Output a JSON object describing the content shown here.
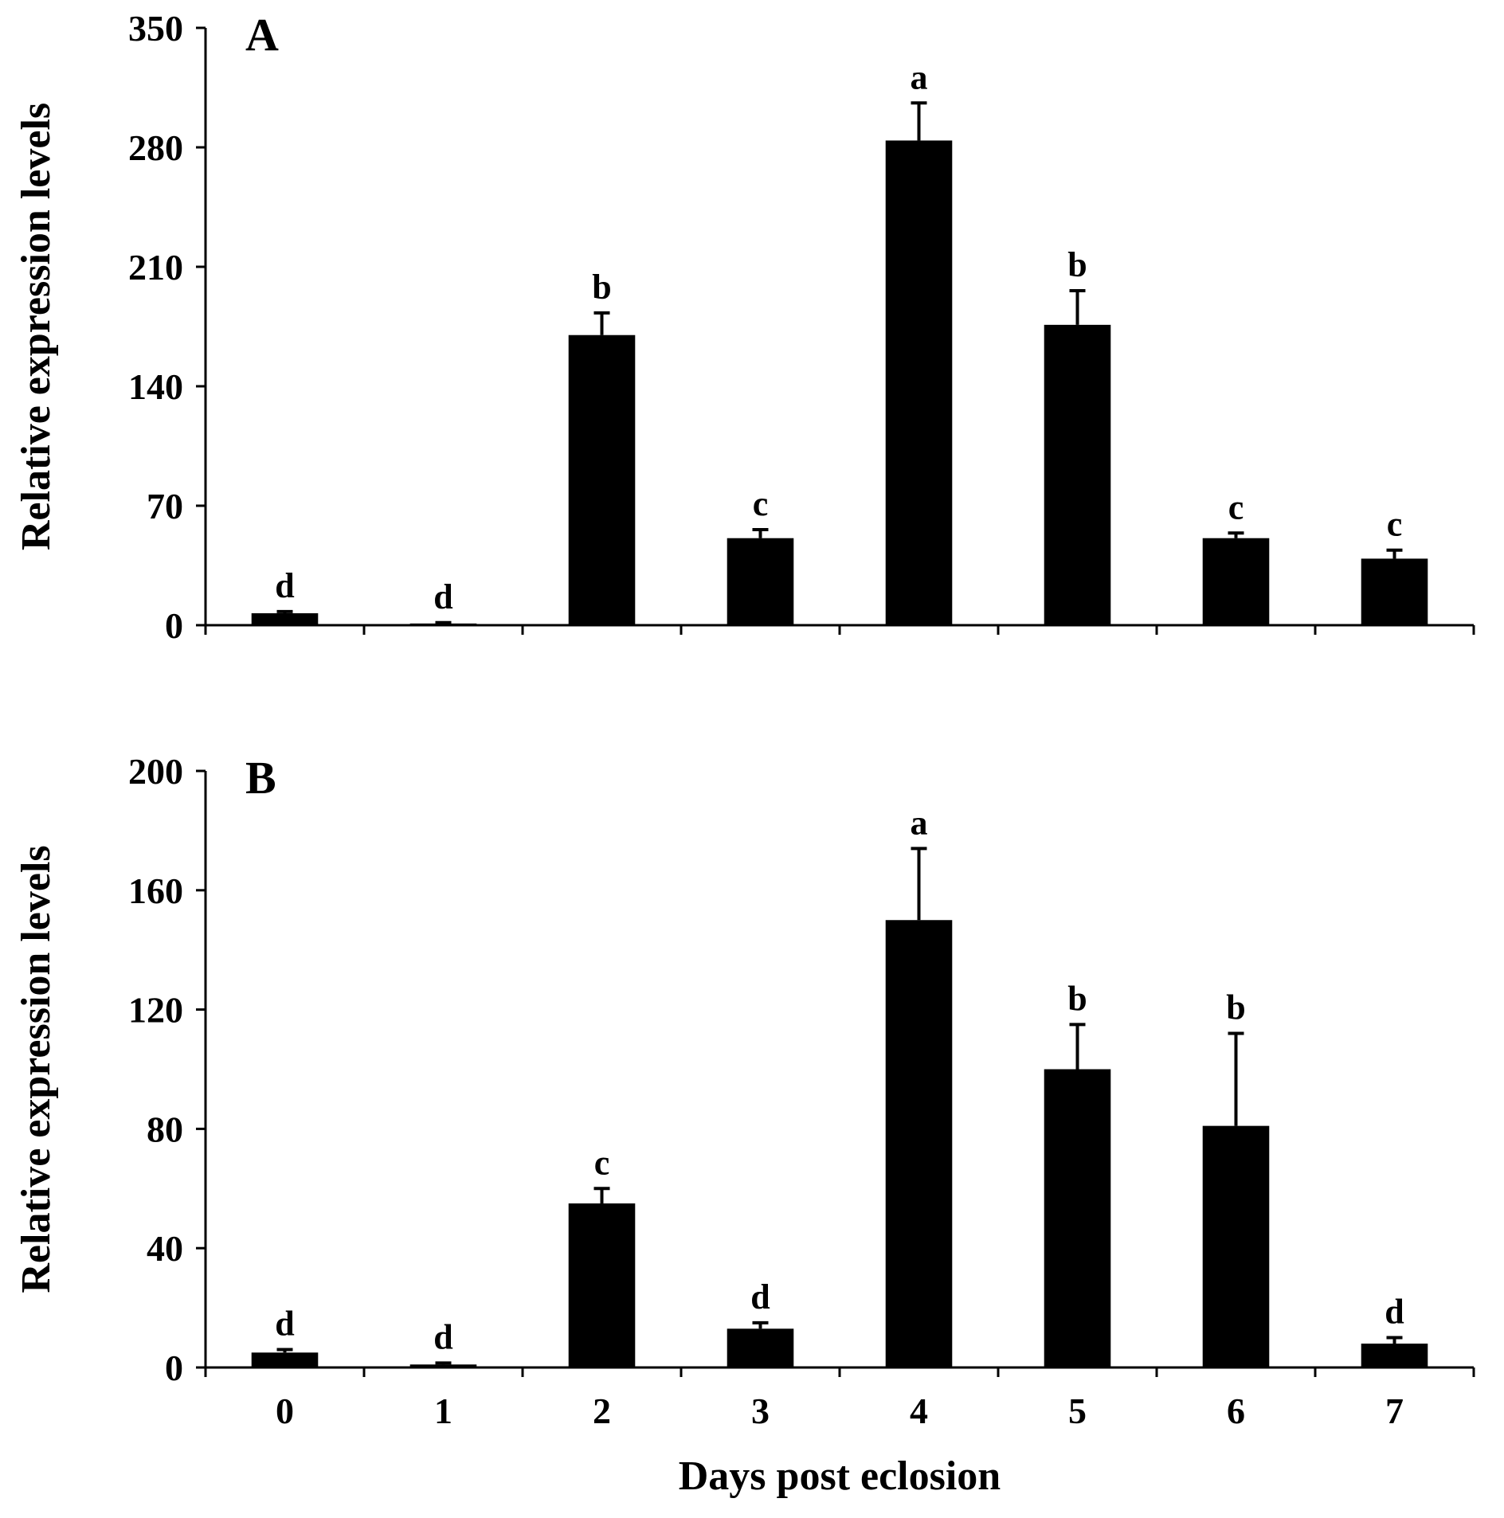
{
  "chart_data": [
    {
      "panel": "A",
      "type": "bar",
      "ylabel": "Relative expression levels",
      "xlabel": "",
      "ylim": [
        0,
        350
      ],
      "yticks": [
        "0",
        "70",
        "140",
        "210",
        "280",
        "350"
      ],
      "categories": [
        "0",
        "1",
        "2",
        "3",
        "4",
        "5",
        "6",
        "7"
      ],
      "values": [
        7,
        1,
        170,
        51,
        284,
        176,
        51,
        39
      ],
      "errors": [
        1,
        0.5,
        13,
        5,
        22,
        20,
        3,
        5
      ],
      "significance": [
        "d",
        "d",
        "b",
        "c",
        "a",
        "b",
        "c",
        "c"
      ],
      "show_xtick_labels": false
    },
    {
      "panel": "B",
      "type": "bar",
      "ylabel": "Relative expression levels",
      "xlabel": "Days post eclosion",
      "ylim": [
        0,
        200
      ],
      "yticks": [
        "0",
        "40",
        "80",
        "120",
        "160",
        "200"
      ],
      "categories": [
        "0",
        "1",
        "2",
        "3",
        "4",
        "5",
        "6",
        "7"
      ],
      "values": [
        5,
        1,
        55,
        13,
        150,
        100,
        81,
        8
      ],
      "errors": [
        1,
        0.5,
        5,
        2,
        24,
        15,
        31,
        2
      ],
      "significance": [
        "d",
        "d",
        "c",
        "d",
        "a",
        "b",
        "b",
        "d"
      ],
      "show_xtick_labels": true
    }
  ]
}
